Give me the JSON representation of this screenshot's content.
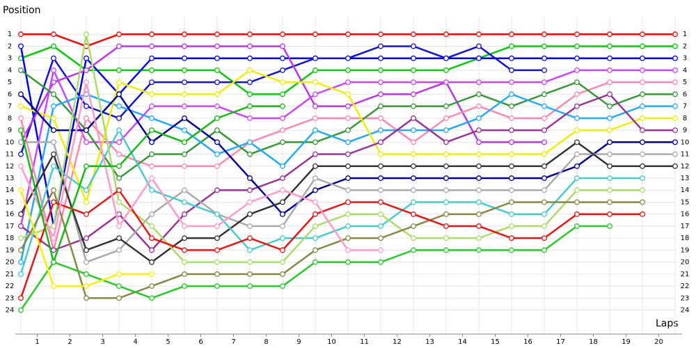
{
  "chart_data": {
    "type": "line",
    "x_label": "Laps",
    "y_label": "Position",
    "y_inverted": true,
    "grid": true,
    "x": [
      0,
      1,
      2,
      3,
      4,
      5,
      6,
      7,
      8,
      9,
      10,
      11,
      12,
      13,
      14,
      15,
      16,
      17,
      18,
      19,
      20
    ],
    "xlim": [
      0,
      20
    ],
    "xticks": [
      {
        "value": 0.5,
        "label": "1"
      },
      {
        "value": 1.5,
        "label": "2"
      },
      {
        "value": 2.5,
        "label": "3"
      },
      {
        "value": 3.5,
        "label": "4"
      },
      {
        "value": 4.5,
        "label": "5"
      },
      {
        "value": 5.5,
        "label": "6"
      },
      {
        "value": 6.5,
        "label": "7"
      },
      {
        "value": 7.5,
        "label": "8"
      },
      {
        "value": 8.5,
        "label": "9"
      },
      {
        "value": 9.5,
        "label": "10"
      },
      {
        "value": 10.5,
        "label": "11"
      },
      {
        "value": 11.5,
        "label": "12"
      },
      {
        "value": 12.5,
        "label": "13"
      },
      {
        "value": 13.5,
        "label": "14"
      },
      {
        "value": 14.5,
        "label": "15"
      },
      {
        "value": 15.5,
        "label": "16"
      },
      {
        "value": 16.5,
        "label": "17"
      },
      {
        "value": 17.5,
        "label": "18"
      },
      {
        "value": 18.5,
        "label": "19"
      },
      {
        "value": 19.5,
        "label": "20"
      }
    ],
    "ylim": [
      0,
      26
    ],
    "yticks": [
      1,
      2,
      3,
      4,
      5,
      6,
      7,
      8,
      9,
      10,
      11,
      12,
      13,
      14,
      15,
      16,
      17,
      18,
      19,
      20,
      21,
      22,
      23,
      24
    ],
    "series": [
      {
        "color": "#ff0000",
        "values": [
          1,
          1,
          2,
          1,
          1,
          1,
          1,
          1,
          1,
          1,
          1,
          1,
          1,
          1,
          1,
          1,
          1,
          1,
          1,
          1,
          1
        ]
      },
      {
        "color": "#00cc00",
        "values": [
          3,
          2,
          4,
          4,
          4,
          4,
          4,
          6,
          6,
          4,
          4,
          4,
          4,
          4,
          3,
          2,
          2,
          2,
          2,
          2,
          2
        ]
      },
      {
        "color": "#0000ff",
        "values": [
          2,
          17,
          3,
          6,
          3,
          3,
          3,
          3,
          3,
          3,
          3,
          3,
          3,
          3,
          3,
          3,
          3,
          3,
          3,
          3,
          3
        ]
      },
      {
        "color": "#1111dd",
        "values": [
          11,
          3,
          7,
          8,
          5,
          5,
          5,
          5,
          4,
          3,
          3,
          2,
          2,
          3,
          2,
          4,
          4,
          null,
          null,
          null,
          null
        ]
      },
      {
        "color": "#bb33ee",
        "values": [
          10,
          5,
          4,
          2,
          2,
          2,
          2,
          2,
          2,
          7,
          7,
          6,
          6,
          5,
          10,
          10,
          10,
          null,
          null,
          null,
          null
        ]
      },
      {
        "color": "#cc44ff",
        "values": [
          17,
          4,
          10,
          10,
          7,
          7,
          7,
          8,
          8,
          6,
          5,
          5,
          5,
          5,
          5,
          5,
          5,
          4,
          4,
          4,
          4
        ]
      },
      {
        "color": "#ff88aa",
        "values": [
          8,
          19,
          8,
          11,
          12,
          12,
          12,
          10,
          9,
          8,
          8,
          8,
          10,
          8,
          7,
          8,
          8,
          6,
          5,
          5,
          5
        ]
      },
      {
        "color": "#339933",
        "values": [
          4,
          6,
          9,
          13,
          11,
          11,
          9,
          11,
          10,
          10,
          9,
          7,
          7,
          7,
          6,
          7,
          6,
          5,
          7,
          6,
          6
        ]
      },
      {
        "color": "#22aaff",
        "values": [
          20,
          7,
          6,
          7,
          8,
          9,
          11,
          10,
          12,
          9,
          10,
          9,
          9,
          9,
          8,
          6,
          7,
          8,
          8,
          7,
          7
        ]
      },
      {
        "color": "#eeee00",
        "values": [
          7,
          8,
          15,
          5,
          6,
          6,
          6,
          4,
          5,
          5,
          6,
          11,
          11,
          11,
          11,
          11,
          11,
          9,
          9,
          8,
          8
        ]
      },
      {
        "color": "#993399",
        "values": [
          17,
          19,
          18,
          16,
          19,
          16,
          14,
          14,
          13,
          11,
          11,
          10,
          8,
          10,
          9,
          9,
          9,
          7,
          6,
          9,
          9
        ]
      },
      {
        "color": "#000099",
        "values": [
          6,
          9,
          9,
          6,
          10,
          8,
          10,
          13,
          16,
          14,
          13,
          13,
          13,
          13,
          13,
          13,
          13,
          12,
          10,
          10,
          10
        ]
      },
      {
        "color": "#aaaaaa",
        "values": [
          10,
          10,
          20,
          19,
          16,
          14,
          16,
          17,
          17,
          13,
          14,
          14,
          14,
          14,
          14,
          14,
          14,
          11,
          11,
          11,
          11
        ]
      },
      {
        "color": "#333333",
        "values": [
          16,
          11,
          19,
          18,
          20,
          18,
          18,
          16,
          15,
          12,
          12,
          12,
          12,
          12,
          12,
          12,
          12,
          10,
          12,
          12,
          12
        ]
      },
      {
        "color": "#44cccc",
        "values": [
          21,
          12,
          14,
          9,
          14,
          15,
          16,
          19,
          18,
          18,
          17,
          17,
          15,
          15,
          15,
          16,
          16,
          13,
          13,
          13,
          null
        ]
      },
      {
        "color": "#aadd66",
        "values": [
          18,
          17,
          1,
          15,
          17,
          20,
          20,
          20,
          20,
          17,
          16,
          16,
          18,
          18,
          18,
          17,
          17,
          14,
          14,
          14,
          null
        ]
      },
      {
        "color": "#888844",
        "values": [
          19,
          14,
          23,
          23,
          22,
          21,
          21,
          21,
          21,
          19,
          18,
          18,
          17,
          16,
          16,
          15,
          15,
          15,
          15,
          15,
          null
        ]
      },
      {
        "color": "#ee1111",
        "values": [
          23,
          15,
          16,
          14,
          18,
          19,
          19,
          18,
          19,
          16,
          15,
          15,
          16,
          17,
          17,
          18,
          18,
          16,
          16,
          16,
          null
        ]
      },
      {
        "color": "#22cc22",
        "values": [
          24,
          20,
          21,
          22,
          23,
          22,
          22,
          22,
          22,
          20,
          20,
          20,
          19,
          19,
          19,
          19,
          19,
          17,
          17,
          null,
          null
        ]
      },
      {
        "color": "#ff99cc",
        "values": [
          12,
          18,
          5,
          17,
          13,
          17,
          17,
          15,
          14,
          15,
          19,
          19,
          null,
          null,
          null,
          null,
          null,
          null,
          null,
          null,
          null
        ]
      },
      {
        "color": "#ffee00",
        "values": [
          14,
          22,
          22,
          21,
          21,
          null,
          null,
          null,
          null,
          null,
          null,
          null,
          null,
          null,
          null,
          null,
          null,
          null,
          null,
          null,
          null
        ]
      },
      {
        "color": "#11bb11",
        "values": [
          9,
          20,
          12,
          12,
          9,
          10,
          8,
          7,
          7,
          null,
          null,
          null,
          null,
          null,
          null,
          null,
          null,
          null,
          null,
          null,
          null
        ]
      }
    ]
  }
}
